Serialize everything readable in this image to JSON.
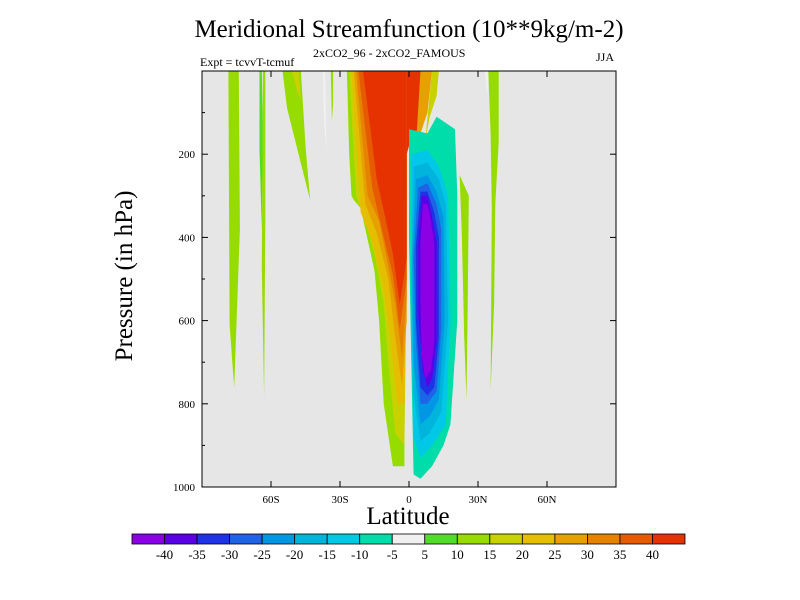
{
  "chart_data": {
    "type": "contour",
    "title": "Meridional Streamfunction (10**9kg/m-2)",
    "left_string": "Expt = tcvvT-tcmuf",
    "center_string": "2xCO2_96 - 2xCO2_FAMOUS",
    "right_string": "JJA",
    "xlabel": "Latitude",
    "ylabel": "Pressure (in hPa)",
    "xlim": [
      -90,
      90
    ],
    "ylim": [
      1000,
      0
    ],
    "y_reversed": true,
    "background_color": "#e6e6e6",
    "x_ticks": [
      {
        "value": -60,
        "label": "60S"
      },
      {
        "value": -30,
        "label": "30S"
      },
      {
        "value": 0,
        "label": "0"
      },
      {
        "value": 30,
        "label": "30N"
      },
      {
        "value": 60,
        "label": "60N"
      }
    ],
    "y_ticks": [
      {
        "value": 200,
        "label": "200"
      },
      {
        "value": 400,
        "label": "400"
      },
      {
        "value": 600,
        "label": "600"
      },
      {
        "value": 800,
        "label": "800"
      },
      {
        "value": 1000,
        "label": "1000"
      }
    ],
    "colorbar": {
      "levels": [
        "-40",
        "-35",
        "-30",
        "-25",
        "-20",
        "-15",
        "-10",
        "-5",
        "5",
        "10",
        "15",
        "20",
        "25",
        "30",
        "35",
        "40"
      ],
      "colors": [
        "#8c00e6",
        "#5a00e6",
        "#1e32e6",
        "#1e64e6",
        "#0096e6",
        "#00b4dc",
        "#00c8e6",
        "#00dcaa",
        "#f0f0f0",
        "#50dc28",
        "#96dc00",
        "#c8d200",
        "#e6be00",
        "#e6a000",
        "#e68200",
        "#e65a00",
        "#e63200"
      ]
    },
    "features": [
      {
        "name": "positive cell (warm colors)",
        "lat_range": [
          -27,
          0
        ],
        "pressure_range": [
          0,
          950
        ],
        "max_value": 40
      },
      {
        "name": "negative cell (cool colors)",
        "lat_range": [
          0,
          20
        ],
        "pressure_range": [
          140,
          980
        ],
        "min_value": -40
      },
      {
        "name": "weak positive band",
        "lat_range": [
          -78,
          -74
        ],
        "pressure_range": [
          0,
          760
        ]
      },
      {
        "name": "weak positive band",
        "lat_range": [
          -50,
          -42
        ],
        "pressure_range": [
          0,
          310
        ]
      }
    ]
  }
}
